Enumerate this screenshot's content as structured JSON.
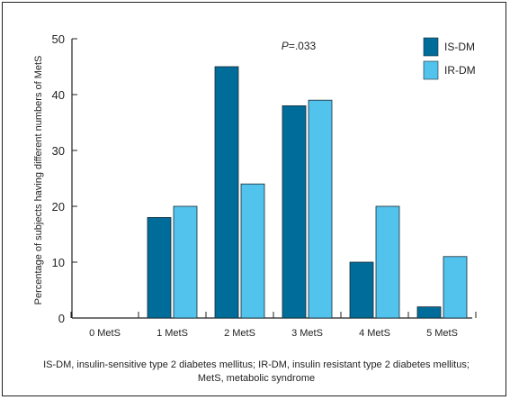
{
  "chart_data": {
    "type": "bar",
    "ylabel": "Percentage of subjects having different numbers of MetS",
    "xlabel": "",
    "ylim": [
      0,
      50
    ],
    "yticks": [
      0,
      10,
      20,
      30,
      40,
      50
    ],
    "categories": [
      "0 MetS",
      "1 MetS",
      "2 MetS",
      "3 MetS",
      "4 MetS",
      "5 MetS"
    ],
    "series": [
      {
        "name": "IS-DM",
        "color": "#006c9a",
        "values": [
          0,
          18,
          45,
          38,
          10,
          2
        ]
      },
      {
        "name": "IR-DM",
        "color": "#52c3ed",
        "values": [
          0,
          20,
          24,
          39,
          20,
          11
        ]
      }
    ],
    "annotation": {
      "italic": "P",
      "text": "=.033"
    },
    "legend": "top-right",
    "grid": false
  },
  "caption": "IS-DM, insulin-sensitive type 2 diabetes mellitus; IR-DM, insulin resistant type 2 diabetes mellitus; MetS, metabolic syndrome"
}
